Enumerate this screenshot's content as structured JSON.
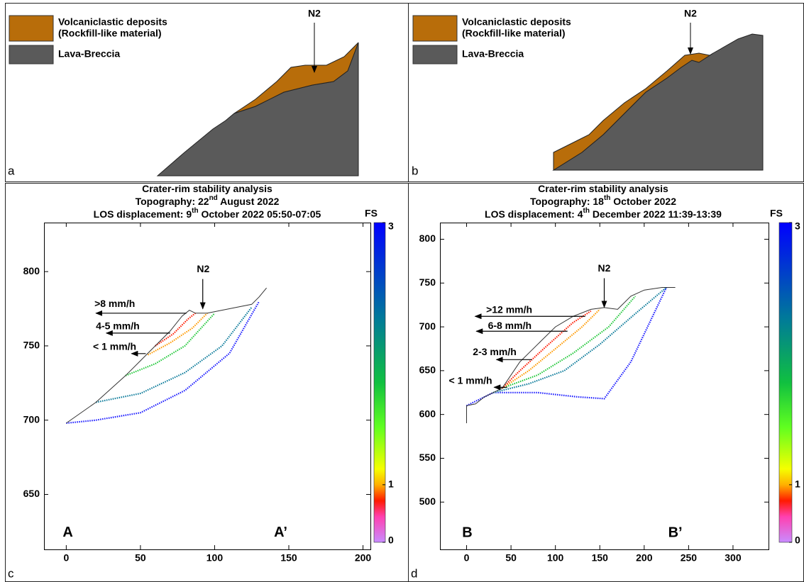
{
  "diagrams": [
    {
      "label": "a",
      "legend": [
        "Volcaniclastic deposits",
        "(Rockfill-like material)",
        "Lava-Breccia"
      ],
      "annotation": "N2"
    },
    {
      "label": "b",
      "legend": [
        "Volcaniclastic deposits",
        "(Rockfill-like material)",
        "Lava-Breccia"
      ],
      "annotation": "N2"
    }
  ],
  "chart_data": [
    {
      "type": "line",
      "panel_label": "c",
      "title": [
        "Crater-rim stability analysis",
        "Topography: 22nd August 2022",
        "LOS displacement: 9th October 2022 05:50-07:05"
      ],
      "section_labels": [
        "A",
        "A’"
      ],
      "xlim": [
        -15,
        205
      ],
      "ylim": [
        613,
        833
      ],
      "xticks": [
        0,
        50,
        100,
        150,
        200
      ],
      "yticks": [
        650,
        700,
        750,
        800
      ],
      "colorbar": {
        "label": "FS",
        "clim": [
          0,
          3
        ],
        "cticks": [
          0,
          1,
          3
        ]
      },
      "series": [
        {
          "color": "#1a1aff",
          "x": [
            0,
            20,
            50,
            80,
            110,
            130
          ],
          "values": [
            698,
            700,
            705,
            720,
            745,
            780
          ]
        },
        {
          "color": "#0a7a9a",
          "x": [
            20,
            50,
            80,
            105,
            125
          ],
          "values": [
            712,
            718,
            732,
            750,
            776
          ]
        },
        {
          "color": "#22c83a",
          "x": [
            40,
            60,
            80,
            100
          ],
          "values": [
            730,
            738,
            750,
            772
          ]
        },
        {
          "color": "#ff9a00",
          "x": [
            55,
            70,
            85,
            95
          ],
          "values": [
            744,
            752,
            762,
            772
          ]
        },
        {
          "color": "#ff1a00",
          "x": [
            60,
            72,
            82,
            87
          ],
          "values": [
            750,
            758,
            768,
            772
          ]
        },
        {
          "color": "#333333",
          "x": [
            0,
            20,
            40,
            50,
            60,
            70,
            78,
            83,
            87,
            95,
            110,
            125,
            130,
            135
          ],
          "values": [
            698,
            712,
            730,
            740,
            750,
            760,
            770,
            774,
            772,
            772,
            775,
            778,
            783,
            789
          ]
        }
      ],
      "annotations": [
        "N2",
        ">8 mm/h",
        "4-5 mm/h",
        "< 1 mm/h"
      ]
    },
    {
      "type": "line",
      "panel_label": "d",
      "title": [
        "Crater-rim stability analysis",
        "Topography: 18th October 2022",
        "LOS displacement: 4th December 2022 11:39-13:39"
      ],
      "section_labels": [
        "B",
        "B’"
      ],
      "xlim": [
        -30,
        340
      ],
      "ylim": [
        446,
        819
      ],
      "xticks": [
        0,
        50,
        100,
        150,
        200,
        250,
        300
      ],
      "yticks": [
        500,
        550,
        600,
        650,
        700,
        750,
        800
      ],
      "colorbar": {
        "label": "FS",
        "clim": [
          0,
          3
        ],
        "cticks": [
          0,
          1,
          3
        ]
      },
      "series": [
        {
          "color": "#1a1aff",
          "x": [
            0,
            30,
            80,
            125,
            155,
            185,
            225
          ],
          "values": [
            610,
            625,
            625,
            620,
            618,
            660,
            745
          ]
        },
        {
          "color": "#0a7a9a",
          "x": [
            30,
            70,
            110,
            150,
            190,
            225
          ],
          "values": [
            625,
            635,
            650,
            680,
            715,
            745
          ]
        },
        {
          "color": "#22c83a",
          "x": [
            40,
            80,
            120,
            160,
            190
          ],
          "values": [
            630,
            645,
            670,
            700,
            735
          ]
        },
        {
          "color": "#ff9a00",
          "x": [
            40,
            70,
            100,
            130,
            150
          ],
          "values": [
            630,
            650,
            675,
            700,
            720
          ]
        },
        {
          "color": "#ff1a00",
          "x": [
            40,
            60,
            90,
            120,
            140
          ],
          "values": [
            630,
            650,
            678,
            705,
            718
          ]
        },
        {
          "color": "#333333",
          "x": [
            0,
            0,
            10,
            20,
            30,
            40,
            60,
            80,
            100,
            120,
            140,
            155,
            170,
            185,
            200,
            220,
            235
          ],
          "values": [
            590,
            610,
            612,
            620,
            625,
            630,
            660,
            680,
            700,
            712,
            720,
            722,
            720,
            735,
            742,
            745,
            745
          ]
        }
      ],
      "annotations": [
        "N2",
        ">12 mm/h",
        "6-8 mm/h",
        "2-3 mm/h",
        "< 1 mm/h"
      ]
    }
  ]
}
